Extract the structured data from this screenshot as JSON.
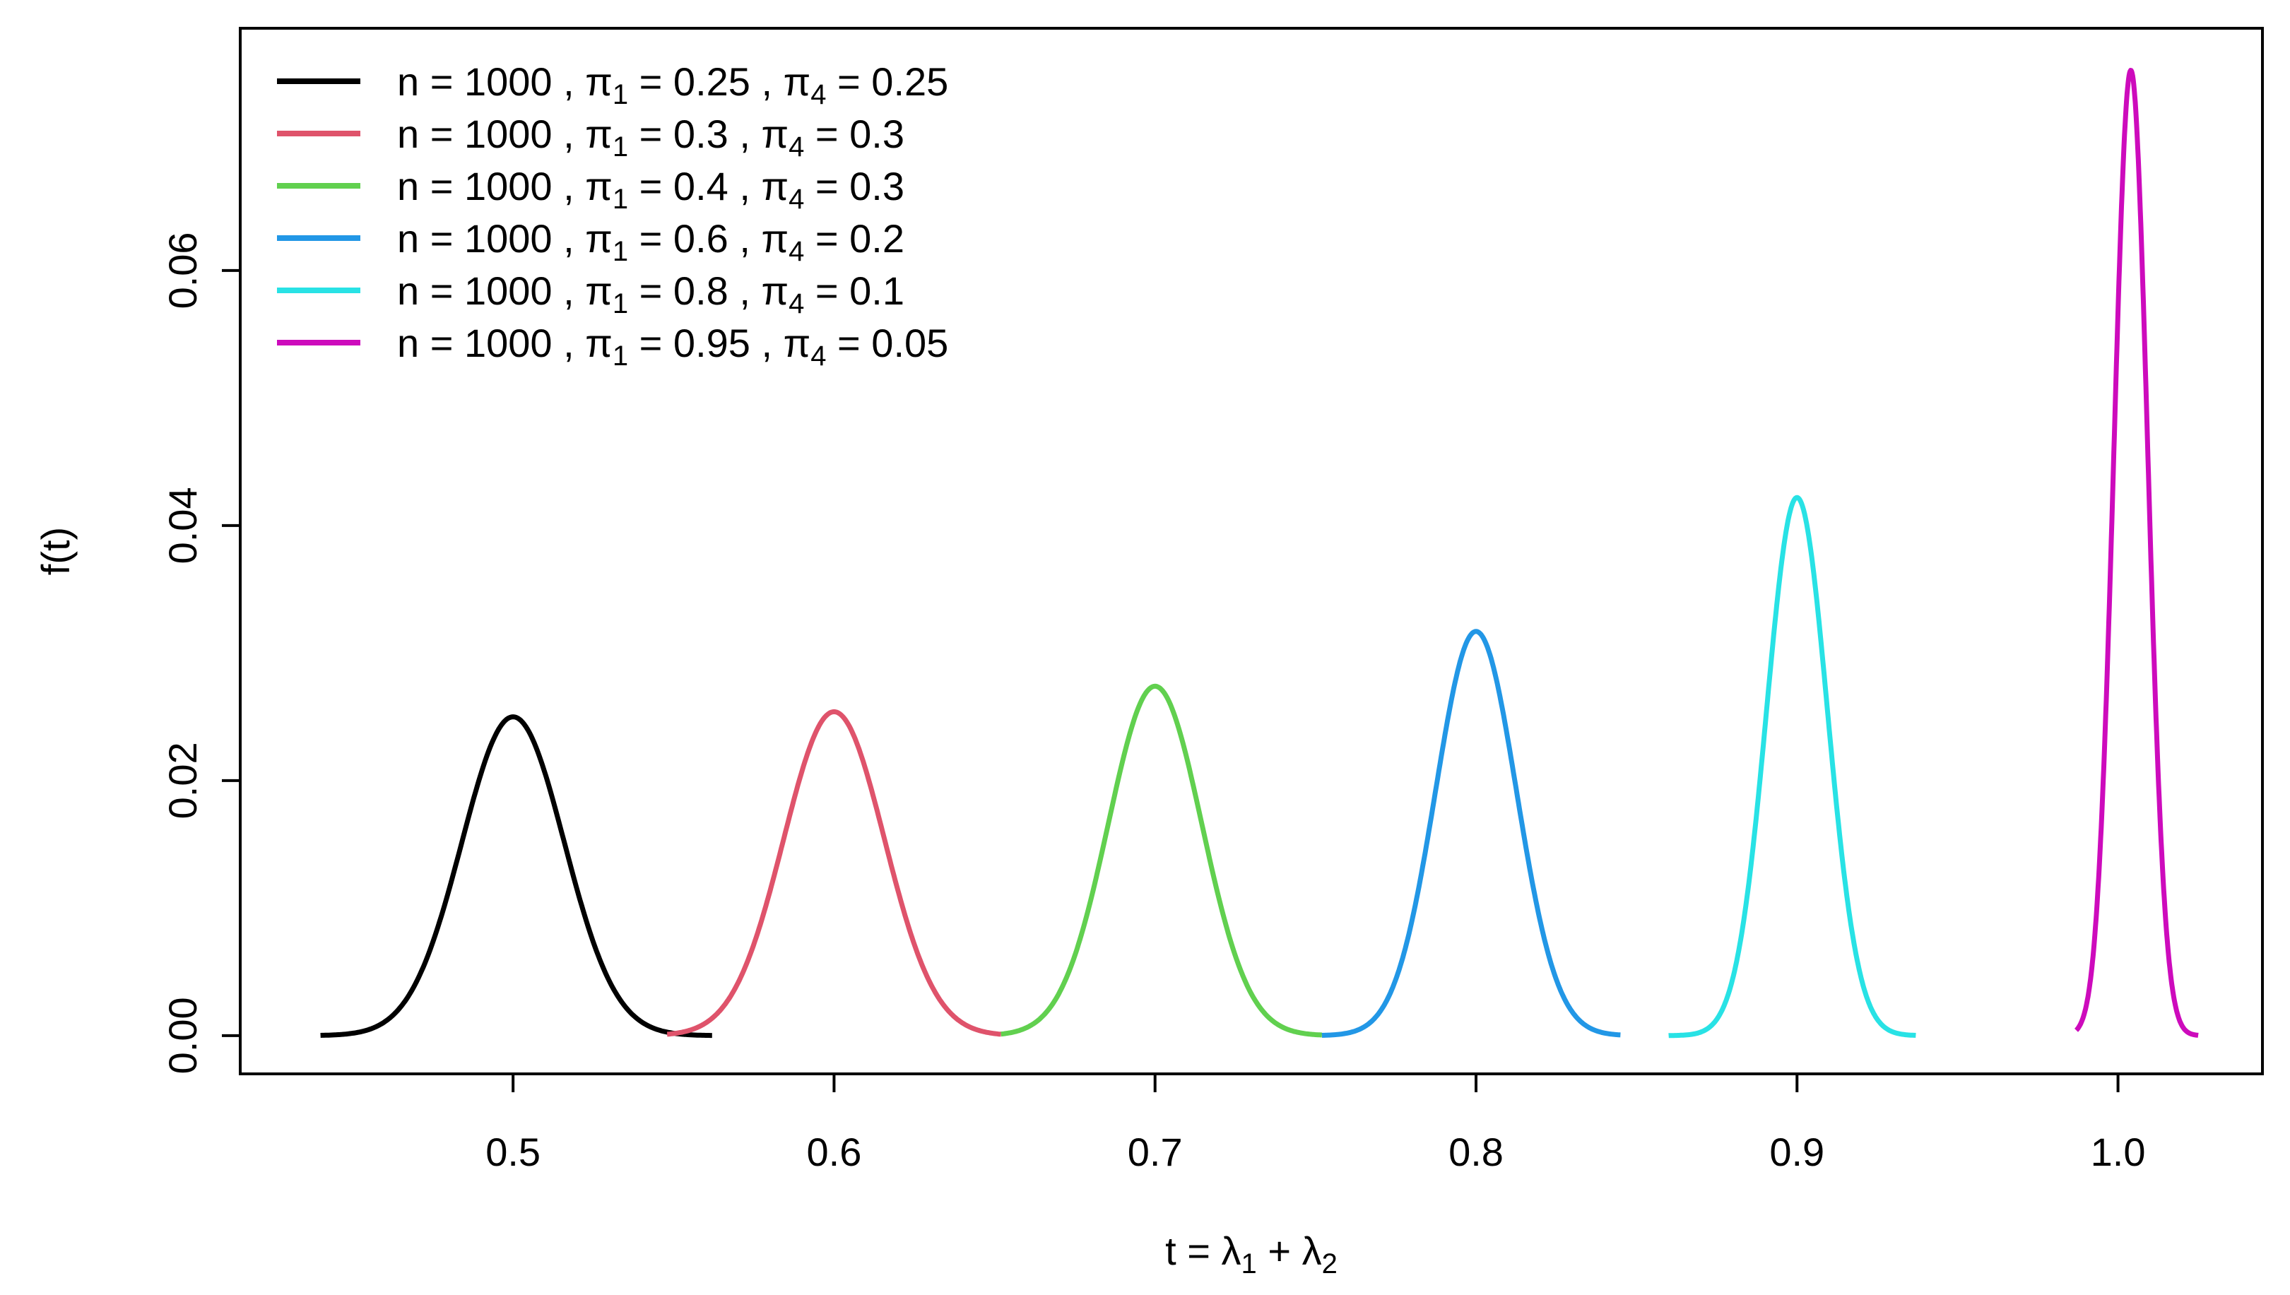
{
  "chart_data": {
    "type": "line",
    "xlabel": "t = λ1 + λ2",
    "ylabel": "f(t)",
    "xlim": [
      0.415,
      1.045
    ],
    "ylim": [
      -0.003,
      0.079
    ],
    "x_ticks": [
      "0.5",
      "0.6",
      "0.7",
      "0.8",
      "0.9",
      "1.0"
    ],
    "y_ticks": [
      "0.00",
      "0.02",
      "0.04",
      "0.06"
    ],
    "grid": false,
    "legend_position": "top-left",
    "series": [
      {
        "name": "n = 1000 , π1 = 0.25 , π4 = 0.25",
        "color": "#000000",
        "mean": 0.5,
        "peak": 0.025,
        "x_range": [
          0.44,
          0.562
        ]
      },
      {
        "name": "n = 1000 , π1 = 0.3 , π4 = 0.3",
        "color": "#DF536B",
        "mean": 0.6,
        "peak": 0.0254,
        "x_range": [
          0.548,
          0.652
        ]
      },
      {
        "name": "n = 1000 , π1 = 0.4 , π4 = 0.3",
        "color": "#61D04F",
        "mean": 0.7,
        "peak": 0.0274,
        "x_range": [
          0.652,
          0.752
        ]
      },
      {
        "name": "n = 1000 , π1 = 0.6 , π4 = 0.2",
        "color": "#2297E6",
        "mean": 0.8,
        "peak": 0.0317,
        "x_range": [
          0.752,
          0.845
        ]
      },
      {
        "name": "n = 1000 , π1 = 0.8 , π4 = 0.1",
        "color": "#28E2E5",
        "mean": 0.9,
        "peak": 0.0422,
        "x_range": [
          0.86,
          0.937
        ]
      },
      {
        "name": "n = 1000 , π1 = 0.95 , π4 = 0.05",
        "color": "#CD0BBC",
        "mean": 1.004,
        "peak": 0.0757,
        "x_range": [
          0.987,
          1.025
        ]
      }
    ],
    "legend": [
      {
        "n": "n = 1000 ,",
        "p1": "0.25",
        "p4": "0.25"
      },
      {
        "n": "n = 1000 ,",
        "p1": "0.3",
        "p4": "0.3"
      },
      {
        "n": "n = 1000 ,",
        "p1": "0.4",
        "p4": "0.3"
      },
      {
        "n": "n = 1000 ,",
        "p1": "0.6",
        "p4": "0.2"
      },
      {
        "n": "n = 1000 ,",
        "p1": "0.8",
        "p4": "0.1"
      },
      {
        "n": "n = 1000 ,",
        "p1": "0.95",
        "p4": "0.05"
      }
    ]
  }
}
